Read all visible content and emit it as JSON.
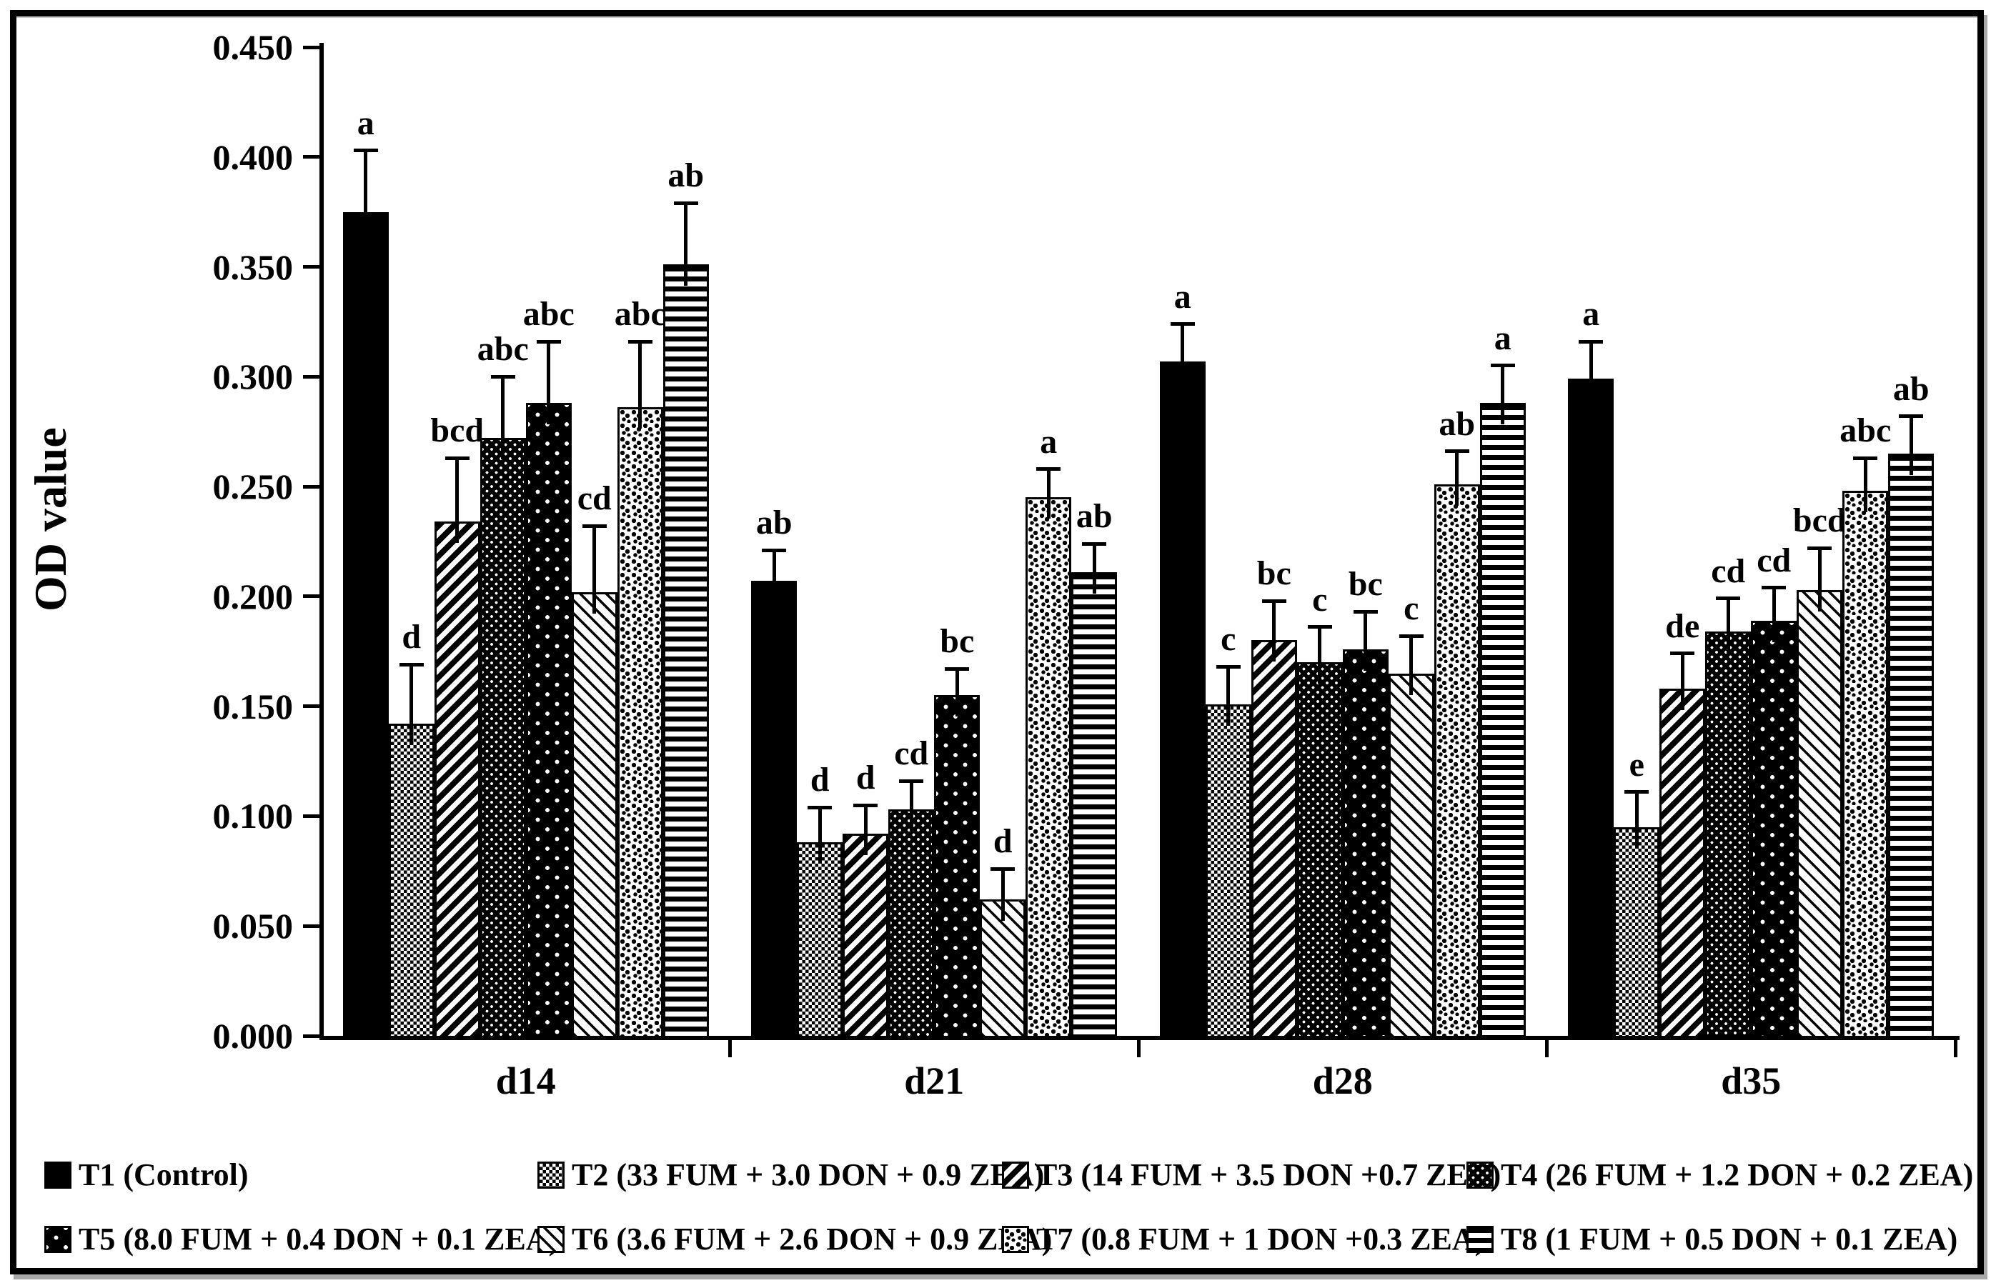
{
  "figure": {
    "ylabel": "OD value",
    "frame_color": "#000000",
    "background": "#ffffff",
    "bar_outline": "#000000"
  },
  "chart_data": {
    "type": "bar",
    "title": "",
    "xlabel": "",
    "ylabel": "OD value",
    "ylim": [
      0.0,
      0.45
    ],
    "ytick_step": 0.05,
    "ytick_labels": [
      "0.000",
      "0.050",
      "0.100",
      "0.150",
      "0.200",
      "0.250",
      "0.300",
      "0.350",
      "0.400",
      "0.450"
    ],
    "grid": false,
    "legend_position": "bottom",
    "error_bars": "upper-only",
    "categories": [
      "d14",
      "d21",
      "d28",
      "d35"
    ],
    "series": [
      {
        "name": "T1 (Control)",
        "pattern": "t1",
        "values": [
          0.375,
          0.207,
          0.307,
          0.299
        ],
        "errors": [
          0.028,
          0.014,
          0.017,
          0.017
        ],
        "letters": [
          "a",
          "ab",
          "a",
          "a"
        ]
      },
      {
        "name": "T2 (33 FUM + 3.0 DON + 0.9 ZEA)",
        "pattern": "t2",
        "values": [
          0.142,
          0.088,
          0.151,
          0.095
        ],
        "errors": [
          0.027,
          0.016,
          0.017,
          0.016
        ],
        "letters": [
          "d",
          "d",
          "c",
          "e"
        ]
      },
      {
        "name": "T3 (14 FUM + 3.5 DON +0.7 ZEA)",
        "pattern": "t3",
        "values": [
          0.234,
          0.092,
          0.18,
          0.158
        ],
        "errors": [
          0.029,
          0.013,
          0.018,
          0.016
        ],
        "letters": [
          "bcd",
          "d",
          "bc",
          "de"
        ]
      },
      {
        "name": "T4 (26 FUM + 1.2 DON + 0.2 ZEA)",
        "pattern": "t4",
        "values": [
          0.272,
          0.103,
          0.17,
          0.184
        ],
        "errors": [
          0.028,
          0.013,
          0.016,
          0.015
        ],
        "letters": [
          "abc",
          "cd",
          "c",
          "cd"
        ]
      },
      {
        "name": "T5 (8.0 FUM + 0.4 DON + 0.1 ZEA)",
        "pattern": "t5",
        "values": [
          0.288,
          0.155,
          0.176,
          0.189
        ],
        "errors": [
          0.028,
          0.012,
          0.017,
          0.015
        ],
        "letters": [
          "abc",
          "bc",
          "bc",
          "cd"
        ]
      },
      {
        "name": "T6 (3.6 FUM + 2.6 DON + 0.9 ZEA)",
        "pattern": "t6",
        "values": [
          0.202,
          0.062,
          0.165,
          0.203
        ],
        "errors": [
          0.03,
          0.014,
          0.017,
          0.019
        ],
        "letters": [
          "cd",
          "d",
          "c",
          "bcd"
        ]
      },
      {
        "name": "T7 (0.8 FUM + 1 DON +0.3 ZEA)",
        "pattern": "t7",
        "values": [
          0.286,
          0.245,
          0.251,
          0.248
        ],
        "errors": [
          0.03,
          0.013,
          0.015,
          0.015
        ],
        "letters": [
          "abc",
          "a",
          "ab",
          "abc"
        ]
      },
      {
        "name": "T8 (1 FUM + 0.5 DON + 0.1 ZEA)",
        "pattern": "t8",
        "values": [
          0.351,
          0.211,
          0.288,
          0.265
        ],
        "errors": [
          0.028,
          0.013,
          0.017,
          0.017
        ],
        "letters": [
          "ab",
          "ab",
          "a",
          "ab"
        ]
      }
    ]
  },
  "legend": {
    "rows": [
      [
        0,
        1,
        2,
        3
      ],
      [
        4,
        5,
        6,
        7
      ]
    ]
  }
}
